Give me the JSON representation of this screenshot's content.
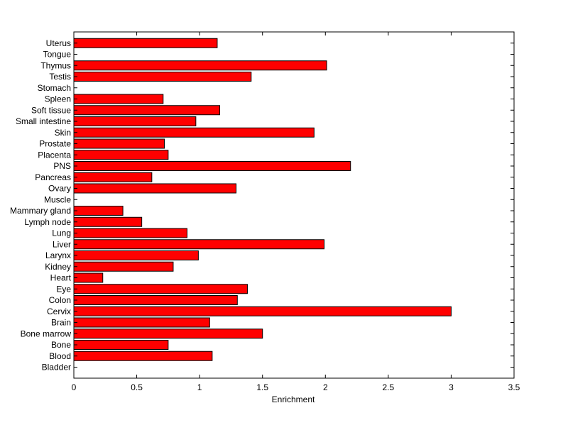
{
  "chart_data": {
    "type": "bar",
    "orientation": "horizontal",
    "title": "",
    "xlabel": "Enrichment",
    "ylabel": "",
    "xlim": [
      0,
      3.5
    ],
    "xticks": [
      "0",
      "0.5",
      "1",
      "1.5",
      "2",
      "2.5",
      "3",
      "3.5"
    ],
    "grid": false,
    "bar_color": "#ff0000",
    "bar_edge_color": "#000000",
    "categories": [
      "Bladder",
      "Blood",
      "Bone",
      "Bone marrow",
      "Brain",
      "Cervix",
      "Colon",
      "Eye",
      "Heart",
      "Kidney",
      "Larynx",
      "Liver",
      "Lung",
      "Lymph node",
      "Mammary gland",
      "Muscle",
      "Ovary",
      "Pancreas",
      "PNS",
      "Placenta",
      "Prostate",
      "Skin",
      "Small intestine",
      "Soft tissue",
      "Spleen",
      "Stomach",
      "Testis",
      "Thymus",
      "Tongue",
      "Uterus"
    ],
    "values": [
      0,
      1.1,
      0.75,
      1.5,
      1.08,
      3.0,
      1.3,
      1.38,
      0.23,
      0.79,
      0.99,
      1.99,
      0.9,
      0.54,
      0.39,
      0,
      1.29,
      0.62,
      2.2,
      0.75,
      0.72,
      1.91,
      0.97,
      1.16,
      0.71,
      0,
      1.41,
      2.01,
      0,
      1.14
    ]
  }
}
